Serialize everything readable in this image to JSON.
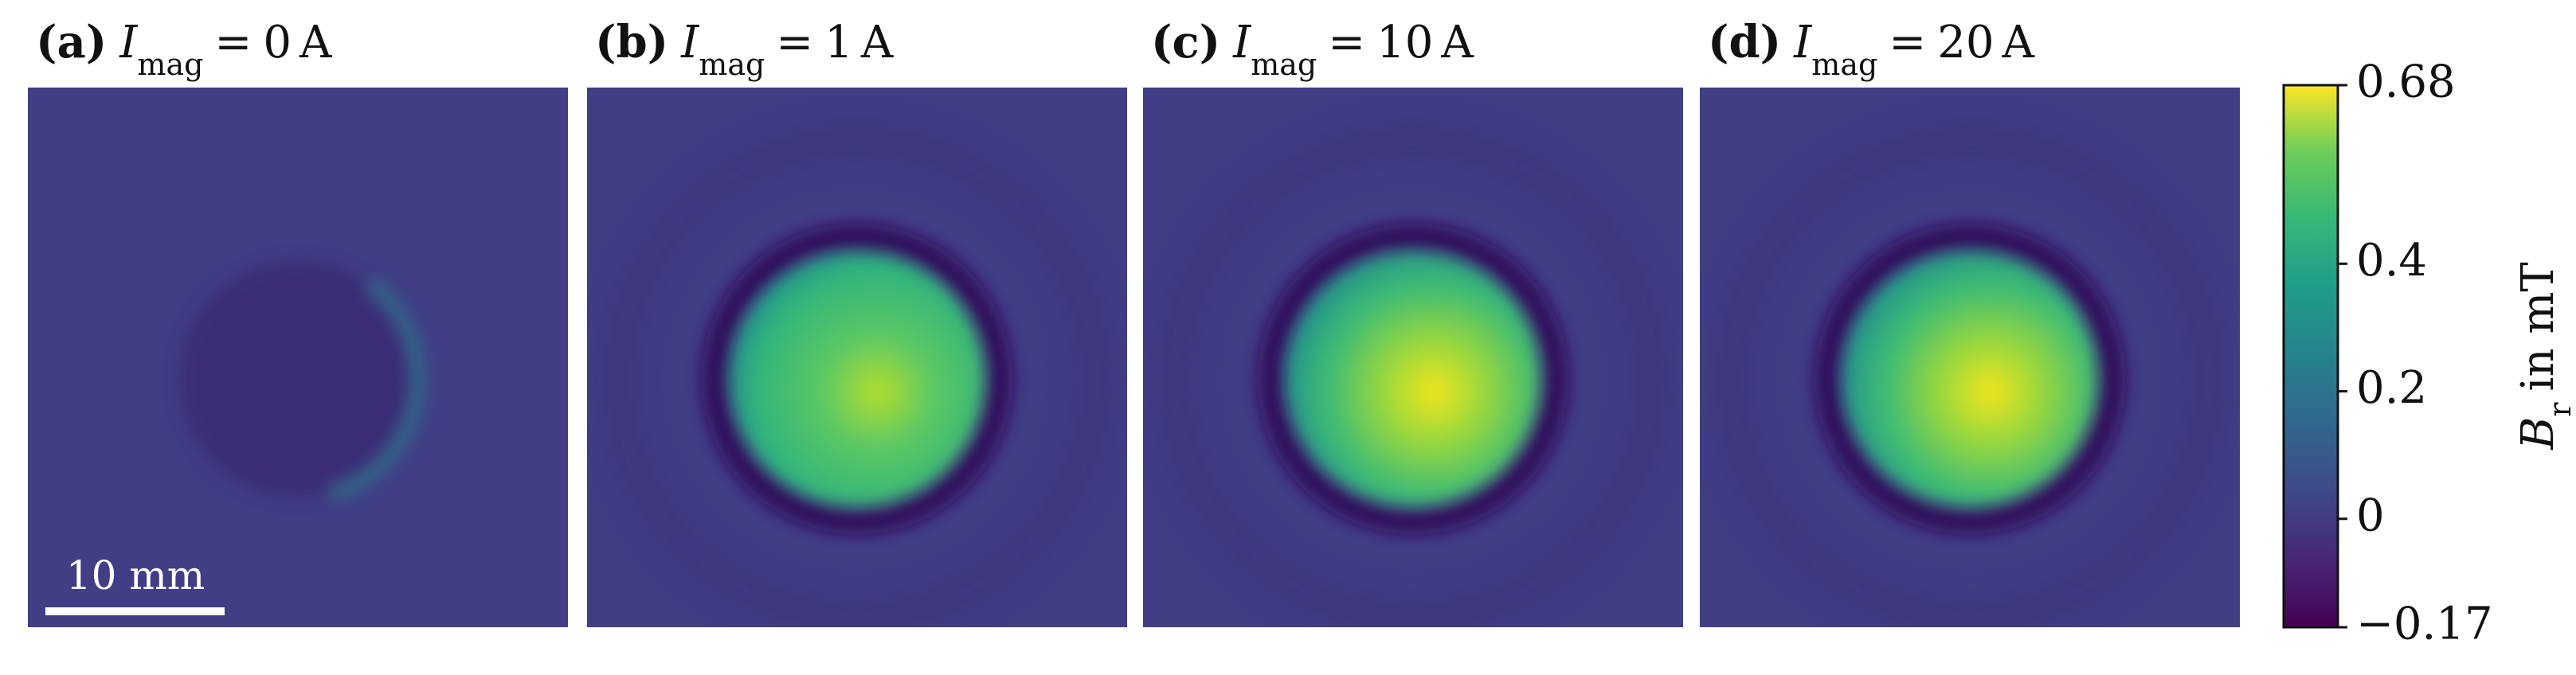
{
  "panels": [
    {
      "letter": "(a)",
      "symbol": "I",
      "subscript": "mag",
      "relation": "=",
      "current": 0,
      "unit": "A"
    },
    {
      "letter": "(b)",
      "symbol": "I",
      "subscript": "mag",
      "relation": "=",
      "current": 1,
      "unit": "A"
    },
    {
      "letter": "(c)",
      "symbol": "I",
      "subscript": "mag",
      "relation": "=",
      "current": 10,
      "unit": "A"
    },
    {
      "letter": "(d)",
      "symbol": "I",
      "subscript": "mag",
      "relation": "=",
      "current": 20,
      "unit": "A"
    }
  ],
  "scale_bar": "10 mm",
  "colorbar": {
    "symbol": "B",
    "subscript": "r",
    "rest": "in mT",
    "lim": [
      -0.17,
      0.68
    ],
    "ticks": [
      {
        "value": -0.17,
        "label": "−0.17"
      },
      0,
      0.2,
      0.4,
      0.68
    ]
  }
}
